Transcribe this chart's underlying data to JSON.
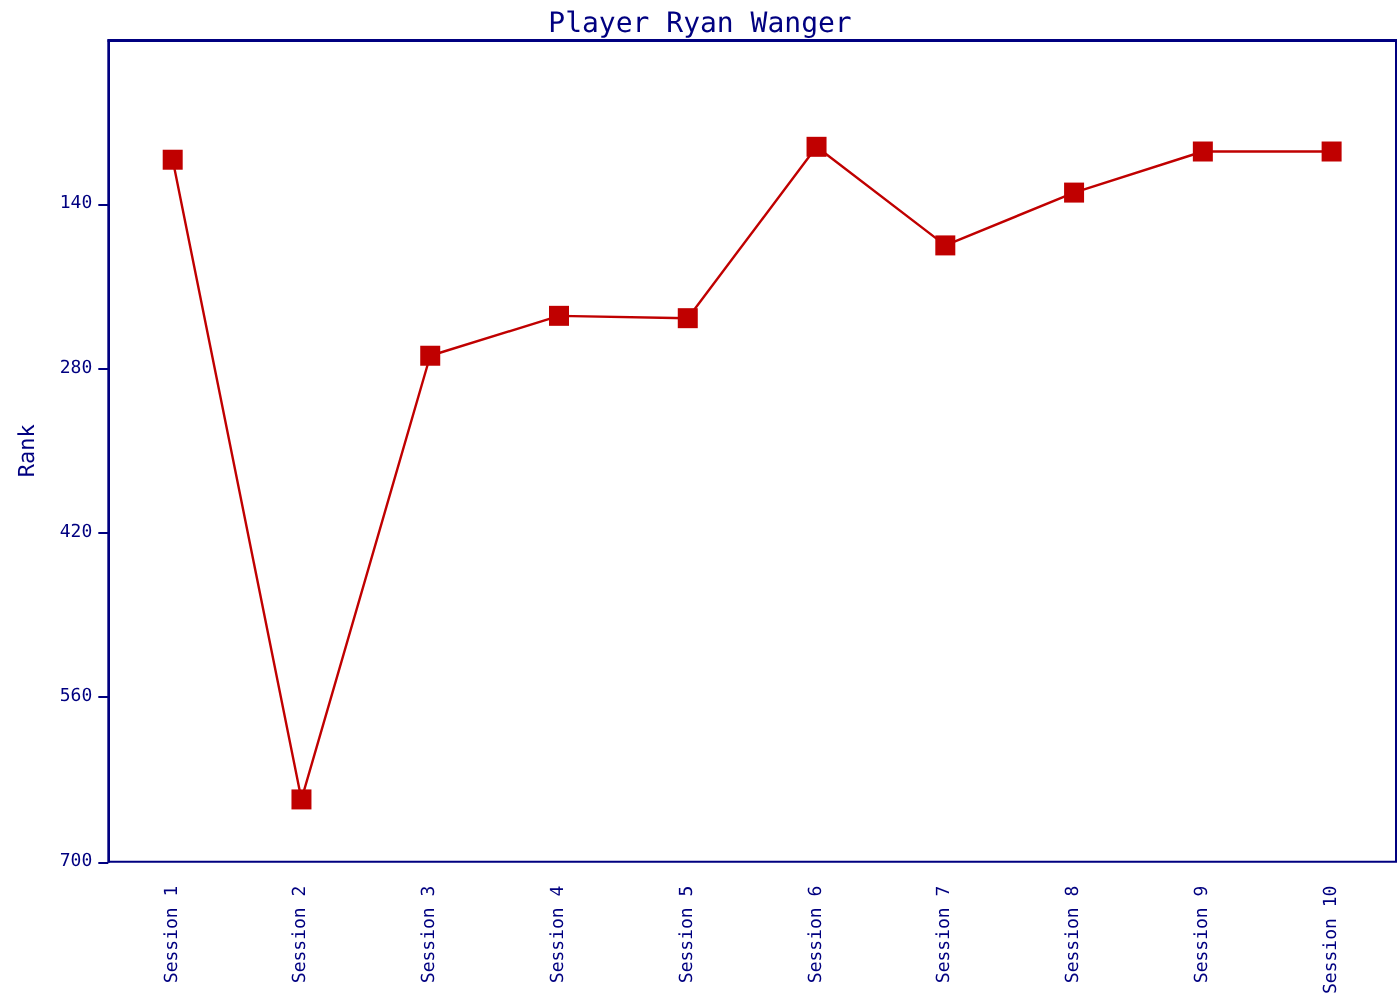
{
  "chart_data": {
    "type": "line",
    "title": "Player Ryan Wanger",
    "ylabel": "Rank",
    "categories": [
      "Session 1",
      "Session 2",
      "Session 3",
      "Session 4",
      "Session 5",
      "Session 6",
      "Session 7",
      "Session 8",
      "Session 9",
      "Session 10"
    ],
    "series": [
      {
        "color": "#c00000",
        "values": [
          102,
          647,
          269,
          235,
          237,
          91,
          175,
          130,
          95,
          95
        ]
      }
    ],
    "ylim": [
      700,
      0
    ],
    "yticks": [
      140,
      280,
      420,
      560,
      700
    ],
    "grid": false,
    "marker": "square",
    "line_style": "solid"
  }
}
